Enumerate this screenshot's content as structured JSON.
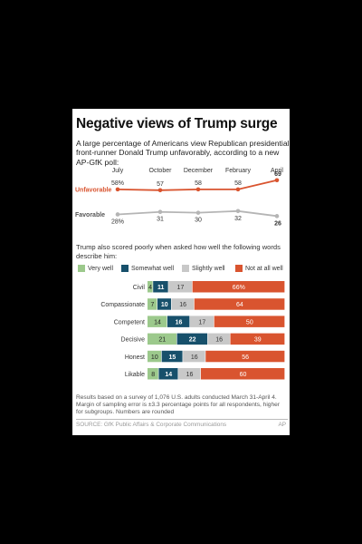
{
  "title": "Negative views of Trump surge",
  "subtitle": "A large percentage of Americans view Republican presidential front-runner Donald Trump unfavorably, according to a new AP-GfK poll:",
  "intro2": "Trump also scored poorly when asked how well the following words describe him:",
  "note": "Results based on a survey of 1,076 U.S. adults conducted March 31-April 4. Margin of sampling error is ±3.3 percentage points for all respondents, higher for subgroups. Numbers are rounded",
  "source": "SOURCE: GfK Public Affairs & Corporate Communications",
  "credit": "AP",
  "colors": {
    "unfavorable": "#d9542f",
    "favorable": "#b5b5b5",
    "very_well": "#9cc98c",
    "somewhat_well": "#17506b",
    "slightly_well": "#c8c8c8",
    "not_at_all_well": "#d9542f"
  },
  "chart_data": [
    {
      "type": "line",
      "x": [
        "July",
        "October",
        "December",
        "February",
        "April"
      ],
      "series": [
        {
          "name": "Unfavorable",
          "values": [
            58,
            57,
            58,
            58,
            69
          ],
          "labels": [
            "58%",
            "57",
            "58",
            "58",
            "69"
          ]
        },
        {
          "name": "Favorable",
          "values": [
            28,
            31,
            30,
            32,
            26
          ],
          "labels": [
            "28%",
            "31",
            "30",
            "32",
            "26"
          ]
        }
      ]
    },
    {
      "type": "bar",
      "stacked": true,
      "orientation": "horizontal",
      "categories": [
        "Civil",
        "Compassionate",
        "Competent",
        "Decisive",
        "Honest",
        "Likable"
      ],
      "series": [
        {
          "name": "Very well",
          "values": [
            4,
            7,
            14,
            21,
            10,
            8
          ]
        },
        {
          "name": "Somewhat well",
          "values": [
            11,
            10,
            16,
            22,
            15,
            14
          ]
        },
        {
          "name": "Slightly well",
          "values": [
            17,
            16,
            17,
            16,
            16,
            16
          ]
        },
        {
          "name": "Not at all well",
          "values": [
            66,
            64,
            50,
            39,
            56,
            60
          ]
        }
      ],
      "value_label_suffix_first_row_last_series": "%"
    }
  ]
}
